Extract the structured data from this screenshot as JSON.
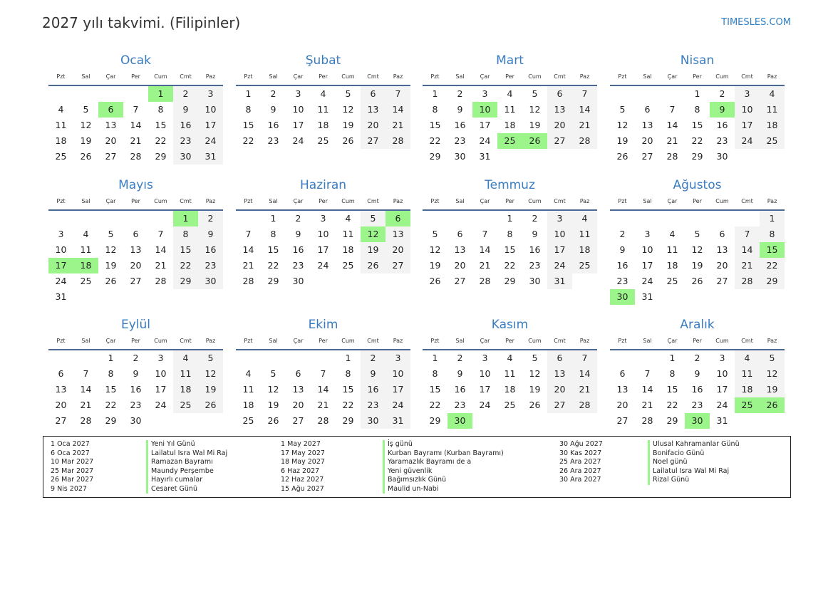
{
  "title": "2027 yılı takvimi. (Filipinler)",
  "site": "TIMESLES.COM",
  "colors": {
    "holiday": "#9cf58a",
    "weekend": "#f3f3f3",
    "accent": "#3a7cc0"
  },
  "weekdays": [
    "Pzt",
    "Sal",
    "Çar",
    "Per",
    "Cum",
    "Cmt",
    "Paz"
  ],
  "months": [
    {
      "name": "Ocak",
      "first_weekday": "Cum",
      "days": 31,
      "holidays": [
        1,
        6
      ]
    },
    {
      "name": "Şubat",
      "first_weekday": "Pzt",
      "days": 28,
      "holidays": []
    },
    {
      "name": "Mart",
      "first_weekday": "Pzt",
      "days": 31,
      "holidays": [
        10,
        25,
        26
      ]
    },
    {
      "name": "Nisan",
      "first_weekday": "Per",
      "days": 30,
      "holidays": [
        9
      ]
    },
    {
      "name": "Mayıs",
      "first_weekday": "Cmt",
      "days": 31,
      "holidays": [
        1,
        17,
        18
      ]
    },
    {
      "name": "Haziran",
      "first_weekday": "Sal",
      "days": 30,
      "holidays": [
        6,
        12
      ]
    },
    {
      "name": "Temmuz",
      "first_weekday": "Per",
      "days": 31,
      "holidays": []
    },
    {
      "name": "Ağustos",
      "first_weekday": "Paz",
      "days": 31,
      "holidays": [
        15,
        30
      ]
    },
    {
      "name": "Eylül",
      "first_weekday": "Çar",
      "days": 30,
      "holidays": []
    },
    {
      "name": "Ekim",
      "first_weekday": "Cum",
      "days": 31,
      "holidays": []
    },
    {
      "name": "Kasım",
      "first_weekday": "Pzt",
      "days": 30,
      "holidays": [
        30
      ]
    },
    {
      "name": "Aralık",
      "first_weekday": "Çar",
      "days": 31,
      "holidays": [
        25,
        26,
        30
      ]
    }
  ],
  "legend": [
    [
      [
        "1 Oca 2027",
        "Yeni Yıl Günü"
      ],
      [
        "6 Oca 2027",
        "Lailatul Isra Wal Mi Raj"
      ],
      [
        "10 Mar 2027",
        "Ramazan Bayramı"
      ],
      [
        "25 Mar 2027",
        "Maundy Perşembe"
      ],
      [
        "26 Mar 2027",
        "Hayırlı cumalar"
      ],
      [
        "9 Nis 2027",
        "Cesaret Günü"
      ]
    ],
    [
      [
        "1 May 2027",
        "İş günü"
      ],
      [
        "17 May 2027",
        "Kurban Bayramı (Kurban Bayramı)"
      ],
      [
        "18 May 2027",
        "Yaramazlık Bayramı de a"
      ],
      [
        "6 Haz 2027",
        "Yeni güvenlik"
      ],
      [
        "12 Haz 2027",
        "Bağımsızlık Günü"
      ],
      [
        "15 Ağu 2027",
        "Maulid un-Nabi"
      ]
    ],
    [
      [
        "30 Ağu 2027",
        "Ulusal Kahramanlar Günü"
      ],
      [
        "30 Kas 2027",
        "Bonifacio Günü"
      ],
      [
        "25 Ara 2027",
        "Noel günü"
      ],
      [
        "26 Ara 2027",
        "Lailatul Isra Wal Mi Raj"
      ],
      [
        "30 Ara 2027",
        "Rizal Günü"
      ]
    ]
  ]
}
